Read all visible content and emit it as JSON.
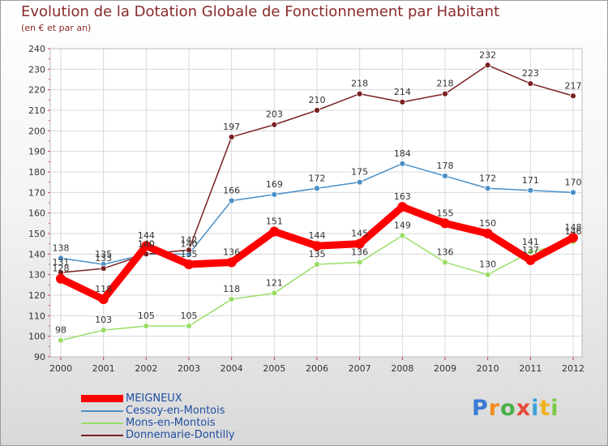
{
  "chart_data": {
    "type": "line",
    "title": "Evolution de la Dotation Globale de Fonctionnement par Habitant",
    "subtitle": "(en € et par an)",
    "categories": [
      "2000",
      "2001",
      "2002",
      "2003",
      "2004",
      "2005",
      "2006",
      "2007",
      "2008",
      "2009",
      "2010",
      "2011",
      "2012"
    ],
    "ylim": [
      90,
      240
    ],
    "yticks": [
      90,
      100,
      110,
      120,
      130,
      140,
      150,
      160,
      170,
      180,
      190,
      200,
      210,
      220,
      230,
      240
    ],
    "grid": true,
    "legend_position": "bottom-left",
    "series": [
      {
        "name": "MEIGNEUX",
        "color": "#ff0000",
        "values": [
          128,
          118,
          144,
          135,
          136,
          151,
          144,
          145,
          163,
          155,
          150,
          137,
          148
        ]
      },
      {
        "name": "Cessoy-en-Montois",
        "color": "#4a8fc8",
        "values": [
          138,
          135,
          140,
          140,
          166,
          169,
          172,
          175,
          184,
          178,
          172,
          171,
          170
        ]
      },
      {
        "name": "Mons-en-Montois",
        "color": "#99dd66",
        "values": [
          98,
          103,
          105,
          105,
          118,
          121,
          135,
          136,
          149,
          136,
          130,
          141,
          146
        ]
      },
      {
        "name": "Donnemarie-Dontilly",
        "color": "#7a2020",
        "values": [
          131,
          133,
          140,
          142,
          197,
          203,
          210,
          218,
          214,
          218,
          232,
          223,
          217
        ]
      }
    ]
  },
  "logo": {
    "letters": [
      "P",
      "r",
      "o",
      "x",
      "i",
      "t",
      "i"
    ],
    "colors": [
      "#3a7bd5",
      "#f08a1c",
      "#4ab04a",
      "#e94b3c",
      "#3aa0d8",
      "#f0b21c",
      "#7ac943"
    ]
  }
}
